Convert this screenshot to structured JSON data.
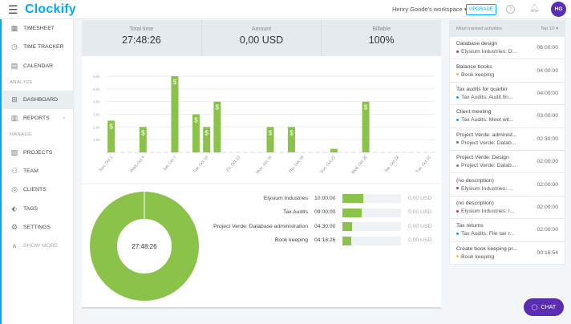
{
  "header": {
    "app": "Clockify",
    "workspace": "Henry Goode's workspace",
    "upgrade": "UPGRADE",
    "avatar": "HG",
    "icons": [
      "menu-icon",
      "help-icon",
      "bell-icon"
    ]
  },
  "sidebar": {
    "items": [
      {
        "label": "TIMESHEET",
        "icon": "▦"
      },
      {
        "label": "TIME TRACKER",
        "icon": "◷"
      },
      {
        "label": "CALENDAR",
        "icon": "▤"
      }
    ],
    "analyze_label": "ANALYZE",
    "analyze": [
      {
        "label": "DASHBOARD",
        "icon": "⊞"
      },
      {
        "label": "REPORTS",
        "icon": "▥"
      }
    ],
    "manage_label": "MANAGE",
    "manage": [
      {
        "label": "PROJECTS",
        "icon": "▧"
      },
      {
        "label": "TEAM",
        "icon": "⚇"
      },
      {
        "label": "CLIENTS",
        "icon": "◎"
      },
      {
        "label": "TAGS",
        "icon": "⬖"
      },
      {
        "label": "SETTINGS",
        "icon": "⚙"
      }
    ],
    "show_more": "SHOW MORE"
  },
  "summary": {
    "total_label": "Total time",
    "total": "27:48:26",
    "amount_label": "Amount",
    "amount": "0,00 USD",
    "billable_label": "Billable",
    "billable": "100%"
  },
  "chart_data": {
    "type": "bar",
    "ylim": [
      0,
      6
    ],
    "yticks": [
      "1.0h",
      "2.0h",
      "3.0h",
      "4.0h",
      "5.0h",
      "6.0h"
    ],
    "xticks": [
      "Sun, Oct 1",
      "Wed, Oct 4",
      "Sat, Oct 7",
      "Tue, Oct 10",
      "Fri, Oct 13",
      "Mon, Oct 16",
      "Thu, Oct 19",
      "Sun, Oct 22",
      "Wed, Oct 25",
      "Sat, Oct 28",
      "Tue, Oct 31"
    ],
    "days": [
      1,
      4,
      7,
      9,
      10,
      11,
      16,
      18,
      22,
      25
    ],
    "values": [
      2.5,
      2,
      6,
      3,
      2,
      4,
      2,
      2,
      0.28,
      4
    ],
    "billable_marker": "$",
    "color": "#8bc34a"
  },
  "donut": {
    "center": "27:48:26",
    "color": "#8bc34a",
    "rows": [
      {
        "name": "Elysium Industries",
        "time": "10:00:00",
        "hours": 10,
        "amount": "0,00 USD"
      },
      {
        "name": "Tax Audits",
        "time": "09:00:00",
        "hours": 9,
        "amount": "0,00 USD"
      },
      {
        "name": "Project Verde: Database administration",
        "time": "04:30:00",
        "hours": 4.5,
        "amount": "0,00 USD"
      },
      {
        "name": "Book keeping",
        "time": "04:18:26",
        "hours": 4.31,
        "amount": "0,00 USD"
      }
    ]
  },
  "activities": {
    "title": "Most tracked activities",
    "filter": "Top 10",
    "items": [
      {
        "desc": "Database design",
        "project": "Elysium Industries: D...",
        "time": "06:00:00",
        "color": "#e91e63"
      },
      {
        "desc": "Balance books",
        "project": "Book keeping",
        "time": "04:00:00",
        "color": "#ffc107"
      },
      {
        "desc": "Tax audits for quarter",
        "project": "Tax Audits: Audit fin...",
        "time": "04:00:00",
        "color": "#03a9f4"
      },
      {
        "desc": "Client meeting",
        "project": "Tax Audits: Meet wit...",
        "time": "03:00:00",
        "color": "#03a9f4"
      },
      {
        "desc": "Project Verde: administ...",
        "project": "Project Verde: Datab...",
        "time": "02:30:00",
        "color": "#607d8b"
      },
      {
        "desc": "Project Verde: Design",
        "project": "Project Verde: Datab...",
        "time": "02:00:00",
        "color": "#607d8b"
      },
      {
        "desc": "(no description)",
        "project": "Elysium Industries: ...",
        "time": "02:00:00",
        "color": "#e91e63"
      },
      {
        "desc": "(no description)",
        "project": "Elysium Industries: I...",
        "time": "02:00:00",
        "color": "#e91e63"
      },
      {
        "desc": "Tax returns",
        "project": "Tax Audits: File tax r...",
        "time": "02:00:00",
        "color": "#03a9f4"
      },
      {
        "desc": "Create book keeping pr...",
        "project": "Book keeping",
        "time": "00:16:54",
        "color": "#ffc107"
      }
    ]
  },
  "chat": "CHAT"
}
